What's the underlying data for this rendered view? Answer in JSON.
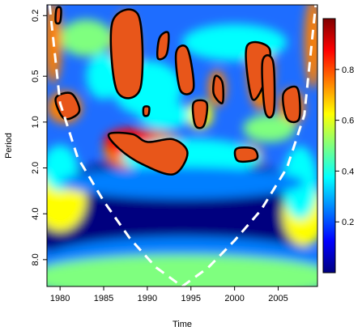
{
  "chart_data": {
    "type": "heatmap",
    "subtype": "wavelet-power-spectrum",
    "title": "",
    "xlabel": "Time",
    "ylabel": "Period",
    "x_ticks": [
      1980,
      1985,
      1990,
      1995,
      2000,
      2005
    ],
    "y_ticks": [
      0.2,
      0.5,
      1.0,
      2.0,
      4.0,
      8.0
    ],
    "y_tick_labels": [
      "0.2",
      "0.5",
      "1.0",
      "2.0",
      "4.0",
      "8.0"
    ],
    "y_scale": "log2",
    "y_inverted": true,
    "xlim": [
      1978.5,
      2009.5
    ],
    "ylim": [
      0.17,
      12
    ],
    "colorbar": {
      "range": [
        0,
        1
      ],
      "ticks": [
        0.2,
        0.4,
        0.6,
        0.8
      ],
      "tick_labels": [
        "0.2",
        "0.4",
        "0.6",
        "0.8"
      ],
      "palette": [
        "#00007f",
        "#0000ff",
        "#007fff",
        "#00ffff",
        "#7fff7f",
        "#ffff00",
        "#ff7f00",
        "#ff0000",
        "#7f0000"
      ]
    },
    "cone_of_influence": {
      "style": "dashed",
      "color": "#ffffff",
      "points": [
        [
          1978.8,
          0.17
        ],
        [
          1980,
          0.75
        ],
        [
          1982,
          1.7
        ],
        [
          1985,
          3.3
        ],
        [
          1988,
          5.8
        ],
        [
          1991,
          9.0
        ],
        [
          1994,
          12.0
        ],
        [
          1997,
          9.0
        ],
        [
          2000,
          6.0
        ],
        [
          2003,
          3.8
        ],
        [
          2006,
          2.0
        ],
        [
          2008,
          0.9
        ],
        [
          2009.3,
          0.17
        ]
      ]
    },
    "significant_regions": [
      {
        "x": [
          1985.6,
          1988.3,
          1990,
          1993,
          1994.6,
          1993,
          1989.5,
          1986.8
        ],
        "y": [
          1.2,
          1.2,
          1.35,
          1.3,
          1.6,
          2.2,
          1.9,
          1.5
        ]
      },
      {
        "x": [
          1979.5,
          1981.3,
          1982.2,
          1980.5
        ],
        "y": [
          0.7,
          0.65,
          0.85,
          0.95
        ]
      },
      {
        "x": [
          2000.2,
          2002.2,
          2002.5,
          2000.4
        ],
        "y": [
          1.5,
          1.5,
          1.75,
          1.8
        ]
      },
      {
        "x": [
          2005.6,
          2007.2,
          2007.4,
          2006
        ],
        "y": [
          0.65,
          0.6,
          0.95,
          0.95
        ]
      },
      {
        "x": [
          1995.3,
          1996.8,
          1996.5,
          1995.5
        ],
        "y": [
          0.75,
          0.75,
          1.05,
          1.05
        ]
      },
      {
        "x": [
          1989.6,
          1990.2,
          1990.1,
          1989.6
        ],
        "y": [
          0.8,
          0.8,
          0.9,
          0.9
        ]
      },
      {
        "x": [
          1997.8,
          1998.6,
          1998.6,
          1997.6
        ],
        "y": [
          0.5,
          0.55,
          0.75,
          0.65
        ]
      },
      {
        "x": [
          2001.4,
          2004,
          2003.4,
          2002
        ],
        "y": [
          0.32,
          0.33,
          0.55,
          0.7
        ]
      },
      {
        "x": [
          2003.2,
          2004.4,
          2004.5,
          2003.5
        ],
        "y": [
          0.4,
          0.4,
          0.85,
          0.85
        ]
      },
      {
        "x": [
          1986,
          1989,
          1989.2,
          1986.5
        ],
        "y": [
          0.22,
          0.2,
          0.6,
          0.62
        ]
      },
      {
        "x": [
          1991.4,
          1992.4,
          1992.2,
          1991.2
        ],
        "y": [
          0.28,
          0.26,
          0.36,
          0.38
        ]
      },
      {
        "x": [
          1993.3,
          1994.6,
          1995.3,
          1993.8
        ],
        "y": [
          0.35,
          0.33,
          0.6,
          0.62
        ]
      },
      {
        "x": [
          1979.6,
          1980.1,
          1980,
          1979.5
        ],
        "y": [
          0.18,
          0.18,
          0.22,
          0.22
        ]
      }
    ]
  }
}
